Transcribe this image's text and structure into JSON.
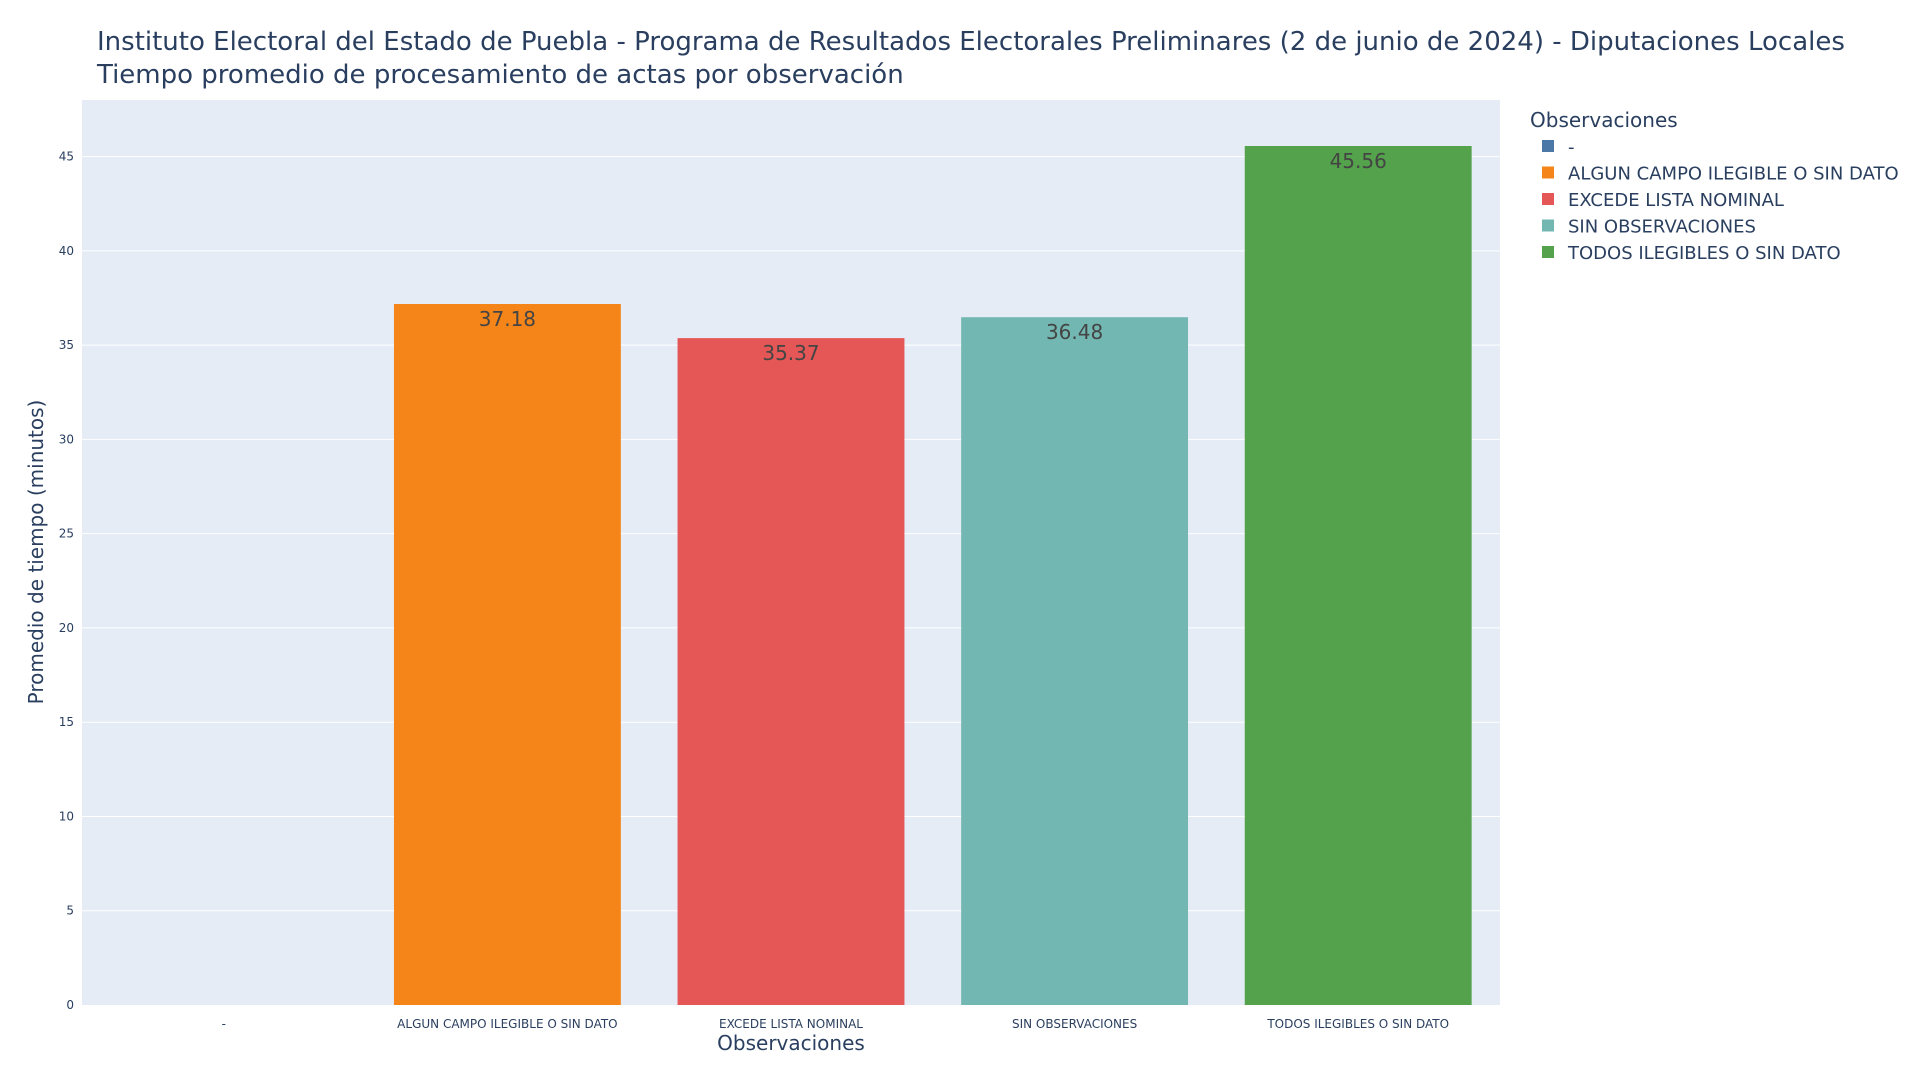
{
  "chart_data": {
    "type": "bar",
    "title": "Instituto Electoral del Estado de Puebla - Programa de Resultados Electorales Preliminares (2 de junio de 2024) - Diputaciones Locales",
    "subtitle": "Tiempo promedio de procesamiento de actas por observación",
    "xlabel": "Observaciones",
    "ylabel": "Promedio de tiempo (minutos)",
    "ylim": [
      0,
      48
    ],
    "yticks": [
      0,
      5,
      10,
      15,
      20,
      25,
      30,
      35,
      40,
      45
    ],
    "ytick_labels": [
      "0",
      "5",
      "10",
      "15",
      "20",
      "25",
      "30",
      "35",
      "40",
      "45"
    ],
    "categories": [
      "-",
      "ALGUN CAMPO ILEGIBLE O SIN DATO",
      "EXCEDE LISTA NOMINAL",
      "SIN OBSERVACIONES",
      "TODOS ILEGIBLES O SIN DATO"
    ],
    "values": [
      0,
      37.18,
      35.37,
      36.48,
      45.56
    ],
    "value_labels": [
      "",
      "37.18",
      "35.37",
      "36.48",
      "45.56"
    ],
    "colors": [
      "#4c78a8",
      "#f58518",
      "#e45756",
      "#72b7b2",
      "#54a24b"
    ],
    "grid": true,
    "plot_background": "#e5ecf6",
    "legend": {
      "title": "Observaciones",
      "placement": "right",
      "items": [
        "-",
        "ALGUN CAMPO ILEGIBLE O SIN DATO",
        "EXCEDE LISTA NOMINAL",
        "SIN OBSERVACIONES",
        "TODOS ILEGIBLES O SIN DATO"
      ]
    }
  }
}
